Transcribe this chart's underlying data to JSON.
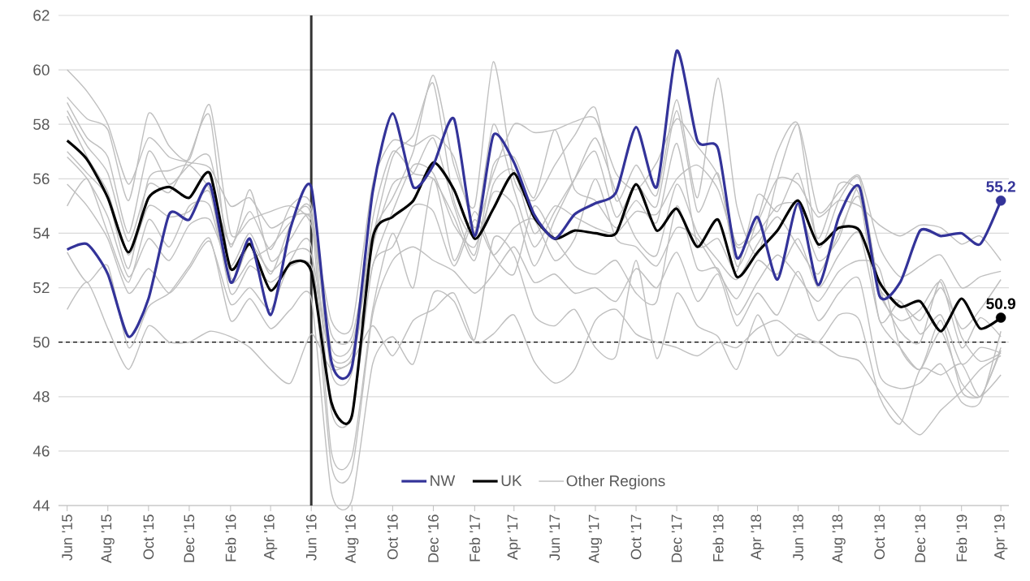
{
  "chart_data": {
    "type": "line",
    "grid": "y",
    "legend": "bottom",
    "x": [
      "2015-06",
      "2015-07",
      "2015-08",
      "2015-09",
      "2015-10",
      "2015-11",
      "2015-12",
      "2016-01",
      "2016-02",
      "2016-03",
      "2016-04",
      "2016-05",
      "2016-06",
      "2016-07",
      "2016-08",
      "2016-09",
      "2016-10",
      "2016-11",
      "2016-12",
      "2017-01",
      "2017-02",
      "2017-03",
      "2017-04",
      "2017-05",
      "2017-06",
      "2017-07",
      "2017-08",
      "2017-09",
      "2017-10",
      "2017-11",
      "2017-12",
      "2018-01",
      "2018-02",
      "2018-03",
      "2018-04",
      "2018-05",
      "2018-06",
      "2018-07",
      "2018-08",
      "2018-09",
      "2018-10",
      "2018-11",
      "2018-12",
      "2019-01",
      "2019-02",
      "2019-03",
      "2019-04"
    ],
    "xlim": [
      "2015-05-19",
      "2019-04-13"
    ],
    "xticks": [
      {
        "value": "2015-06",
        "label": "Jun '15"
      },
      {
        "value": "2015-08",
        "label": "Aug '15"
      },
      {
        "value": "2015-10",
        "label": "Oct '15"
      },
      {
        "value": "2015-12",
        "label": "Dec '15"
      },
      {
        "value": "2016-02",
        "label": "Feb '16"
      },
      {
        "value": "2016-04",
        "label": "Apr '16"
      },
      {
        "value": "2016-06",
        "label": "Jun '16"
      },
      {
        "value": "2016-08",
        "label": "Aug '16"
      },
      {
        "value": "2016-10",
        "label": "Oct '16"
      },
      {
        "value": "2016-12",
        "label": "Dec '16"
      },
      {
        "value": "2017-02",
        "label": "Feb '17"
      },
      {
        "value": "2017-04",
        "label": "Apr '17"
      },
      {
        "value": "2017-06",
        "label": "Jun '17"
      },
      {
        "value": "2017-08",
        "label": "Aug '17"
      },
      {
        "value": "2017-10",
        "label": "Oct '17"
      },
      {
        "value": "2017-12",
        "label": "Dec '17"
      },
      {
        "value": "2018-02",
        "label": "Feb '18"
      },
      {
        "value": "2018-04",
        "label": "Apr '18"
      },
      {
        "value": "2018-06",
        "label": "Jun '18"
      },
      {
        "value": "2018-08",
        "label": "Aug '18"
      },
      {
        "value": "2018-10",
        "label": "Oct '18"
      },
      {
        "value": "2018-12",
        "label": "Dec '18"
      },
      {
        "value": "2019-02",
        "label": "Feb '19"
      },
      {
        "value": "2019-04",
        "label": "Apr '19"
      }
    ],
    "ylim": [
      44,
      62
    ],
    "yticks": [
      44,
      46,
      48,
      50,
      52,
      54,
      56,
      58,
      60,
      62
    ],
    "ref_lines": [
      {
        "axis": "x",
        "value": "2016-06",
        "color": "#333333",
        "line_style": "solid"
      },
      {
        "axis": "y",
        "value": 50,
        "color": "#000000",
        "line_style": "dashed"
      }
    ],
    "series": [
      {
        "name": "NW",
        "color": "#333399",
        "values": [
          53.4,
          53.6,
          52.5,
          50.2,
          51.6,
          54.7,
          54.5,
          55.8,
          52.2,
          53.8,
          51.0,
          54.2,
          55.7,
          49.3,
          49.1,
          55.5,
          58.4,
          55.7,
          56.5,
          58.2,
          53.9,
          57.6,
          56.6,
          54.7,
          53.8,
          54.7,
          55.1,
          55.5,
          57.9,
          55.7,
          60.7,
          57.4,
          57.1,
          53.1,
          54.6,
          52.3,
          55.1,
          52.1,
          54.6,
          55.7,
          51.7,
          52.2,
          54.1,
          53.9,
          54.0,
          53.6,
          55.2
        ],
        "value_labels": [
          null,
          null,
          null,
          null,
          null,
          null,
          null,
          null,
          null,
          null,
          null,
          null,
          null,
          null,
          null,
          null,
          null,
          null,
          null,
          null,
          null,
          null,
          null,
          null,
          null,
          null,
          null,
          null,
          null,
          null,
          null,
          null,
          null,
          null,
          null,
          null,
          null,
          null,
          null,
          null,
          null,
          null,
          null,
          null,
          null,
          null,
          "55.2"
        ]
      },
      {
        "name": "UK",
        "color": "#000000",
        "values": [
          57.4,
          56.7,
          55.3,
          53.3,
          55.3,
          55.7,
          55.3,
          56.2,
          52.7,
          53.6,
          51.9,
          52.9,
          52.6,
          47.8,
          47.3,
          53.8,
          54.6,
          55.2,
          56.6,
          55.6,
          53.8,
          54.9,
          56.2,
          54.6,
          53.8,
          54.1,
          54.0,
          54.0,
          55.8,
          54.1,
          54.9,
          53.5,
          54.5,
          52.4,
          53.3,
          54.1,
          55.2,
          53.6,
          54.2,
          54.1,
          52.2,
          51.3,
          51.5,
          50.4,
          51.6,
          50.5,
          50.9
        ],
        "value_labels": [
          null,
          null,
          null,
          null,
          null,
          null,
          null,
          null,
          null,
          null,
          null,
          null,
          null,
          null,
          null,
          null,
          null,
          null,
          null,
          null,
          null,
          null,
          null,
          null,
          null,
          null,
          null,
          null,
          null,
          null,
          null,
          null,
          null,
          null,
          null,
          null,
          null,
          null,
          null,
          null,
          null,
          null,
          null,
          null,
          null,
          null,
          "50.9"
        ]
      },
      {
        "name": "Other Regions",
        "color": "#bfbfbf",
        "values": [
          60.0,
          59.2,
          58.0,
          55.8,
          57.5,
          56.8,
          56.6,
          56.4,
          55.0,
          55.3,
          54.2,
          54.6,
          54.5,
          50.8,
          50.6,
          55.8,
          57.4,
          57.2,
          57.6,
          56.8,
          54.2,
          56.2,
          58.0,
          57.7,
          57.8,
          58.1,
          58.2,
          56.2,
          55.6,
          56.6,
          58.2,
          57.2,
          56.1,
          53.6,
          54.4,
          56.0,
          55.8,
          54.6,
          55.2,
          55.0,
          54.3,
          53.9,
          54.3,
          54.2,
          53.6,
          53.9,
          53.0
        ]
      },
      {
        "color": "#bfbfbf",
        "values": [
          59.0,
          58.2,
          57.8,
          55.2,
          58.4,
          57.2,
          56.7,
          58.7,
          54.0,
          54.5,
          54.8,
          55.0,
          54.3,
          50.3,
          50.2,
          54.0,
          55.3,
          57.0,
          59.8,
          56.5,
          55.0,
          60.3,
          56.0,
          55.2,
          56.5,
          57.6,
          58.6,
          55.2,
          56.5,
          55.4,
          58.9,
          55.3,
          59.7,
          55.0,
          53.2,
          56.0,
          58.0,
          54.8,
          55.5,
          56.1,
          53.5,
          52.4,
          52.8,
          53.2,
          52.0,
          52.4,
          52.6
        ]
      },
      {
        "color": "#bfbfbf",
        "values": [
          58.8,
          57.5,
          56.8,
          54.0,
          57.0,
          55.8,
          56.5,
          56.8,
          53.5,
          55.6,
          53.0,
          53.8,
          54.6,
          49.8,
          49.9,
          53.8,
          56.8,
          57.6,
          59.5,
          55.2,
          54.0,
          58.0,
          55.6,
          53.5,
          54.8,
          56.0,
          57.0,
          54.6,
          55.8,
          55.0,
          58.5,
          54.8,
          56.2,
          52.8,
          54.5,
          57.0,
          58.0,
          53.5,
          55.2,
          56.0,
          52.0,
          51.5,
          50.8,
          52.0,
          50.5,
          51.2,
          52.3
        ]
      },
      {
        "color": "#bfbfbf",
        "values": [
          58.5,
          57.2,
          56.2,
          53.7,
          55.8,
          55.5,
          56.8,
          58.3,
          52.4,
          53.6,
          52.6,
          53.3,
          53.2,
          49.5,
          49.6,
          53.5,
          55.8,
          56.2,
          57.5,
          55.0,
          53.2,
          56.5,
          56.8,
          55.3,
          57.8,
          55.6,
          55.2,
          54.2,
          55.2,
          54.4,
          57.3,
          53.6,
          53.8,
          52.6,
          55.4,
          54.8,
          56.2,
          53.8,
          55.8,
          55.4,
          51.8,
          50.8,
          51.2,
          52.2,
          49.8,
          50.9,
          50.2
        ]
      },
      {
        "color": "#bfbfbf",
        "values": [
          58.3,
          56.8,
          55.5,
          53.2,
          55.0,
          54.6,
          54.8,
          55.5,
          51.8,
          52.8,
          52.2,
          52.8,
          52.8,
          49.3,
          49.4,
          52.8,
          54.8,
          56.5,
          56.2,
          54.3,
          53.5,
          55.5,
          55.0,
          52.8,
          54.5,
          56.0,
          57.5,
          55.5,
          53.8,
          53.2,
          55.8,
          54.0,
          53.0,
          52.3,
          53.6,
          54.6,
          53.5,
          52.5,
          54.0,
          55.3,
          50.8,
          51.5,
          50.3,
          51.0,
          49.2,
          49.8,
          49.6
        ]
      },
      {
        "color": "#bfbfbf",
        "values": [
          57.0,
          56.2,
          55.3,
          52.7,
          56.0,
          56.3,
          56.5,
          55.6,
          53.6,
          54.8,
          53.4,
          55.0,
          55.0,
          48.9,
          48.9,
          54.5,
          57.0,
          56.2,
          56.0,
          54.6,
          53.0,
          55.8,
          56.3,
          54.0,
          55.0,
          54.6,
          54.2,
          54.0,
          54.8,
          54.7,
          56.0,
          56.5,
          55.6,
          53.5,
          54.0,
          55.0,
          55.0,
          53.0,
          53.8,
          55.7,
          52.0,
          50.4,
          50.0,
          52.3,
          50.2,
          49.3,
          49.6
        ]
      },
      {
        "color": "#bfbfbf",
        "values": [
          56.8,
          56.0,
          54.6,
          52.4,
          53.8,
          53.0,
          54.3,
          54.5,
          52.8,
          54.0,
          52.5,
          54.3,
          54.8,
          47.5,
          47.3,
          52.8,
          53.5,
          55.0,
          54.8,
          52.8,
          54.5,
          53.2,
          54.2,
          54.5,
          53.0,
          53.8,
          56.0,
          53.8,
          53.5,
          52.8,
          54.2,
          53.8,
          52.6,
          51.6,
          53.0,
          52.5,
          53.8,
          52.0,
          53.2,
          54.0,
          50.8,
          49.8,
          49.0,
          50.8,
          48.2,
          48.0,
          48.8
        ]
      },
      {
        "color": "#bfbfbf",
        "values": [
          55.0,
          56.0,
          54.0,
          52.2,
          54.5,
          53.5,
          55.0,
          55.0,
          52.2,
          53.0,
          53.5,
          54.4,
          54.6,
          46.0,
          45.8,
          51.2,
          54.0,
          52.0,
          56.0,
          53.0,
          54.8,
          53.2,
          52.5,
          55.0,
          53.8,
          52.8,
          52.5,
          53.0,
          51.8,
          51.5,
          55.0,
          52.7,
          52.7,
          51.0,
          52.2,
          53.2,
          52.4,
          51.5,
          52.6,
          53.0,
          52.7,
          49.8,
          49.0,
          50.4,
          48.5,
          48.0,
          49.7
        ]
      },
      {
        "color": "#bfbfbf",
        "values": [
          55.8,
          55.0,
          53.8,
          51.8,
          52.7,
          51.8,
          52.7,
          53.7,
          51.4,
          52.0,
          51.2,
          53.0,
          53.5,
          45.5,
          45.3,
          51.0,
          53.0,
          53.5,
          53.0,
          52.6,
          51.8,
          52.5,
          53.5,
          52.2,
          52.5,
          51.8,
          52.0,
          51.5,
          52.7,
          52.0,
          53.3,
          51.5,
          52.5,
          50.6,
          51.8,
          51.0,
          52.6,
          50.8,
          51.8,
          52.3,
          48.8,
          48.3,
          48.5,
          49.2,
          47.8,
          47.8,
          50.4
        ]
      },
      {
        "color": "#bfbfbf",
        "values": [
          53.3,
          52.2,
          52.8,
          49.8,
          51.3,
          51.8,
          52.8,
          53.8,
          50.8,
          51.6,
          50.5,
          51.2,
          51.6,
          44.5,
          44.2,
          49.2,
          50.2,
          49.2,
          51.8,
          51.5,
          50.1,
          53.8,
          53.2,
          51.0,
          50.6,
          51.2,
          49.8,
          49.5,
          53.0,
          49.4,
          51.8,
          50.6,
          50.2,
          49.0,
          51.0,
          49.5,
          50.3,
          50.0,
          51.0,
          50.8,
          48.0,
          47.0,
          49.0,
          48.8,
          49.2,
          48.0,
          49.8
        ]
      },
      {
        "color": "#bfbfbf",
        "values": [
          51.2,
          52.2,
          50.5,
          49.0,
          50.6,
          50.0,
          50.0,
          50.4,
          50.2,
          49.8,
          49.0,
          48.5,
          50.3,
          49.0,
          49.3,
          50.6,
          49.5,
          50.8,
          51.2,
          51.8,
          50.0,
          50.3,
          51.0,
          49.3,
          48.5,
          49.0,
          50.8,
          51.2,
          50.3,
          50.0,
          49.8,
          49.5,
          50.0,
          49.8,
          50.5,
          50.8,
          50.2,
          50.0,
          49.5,
          49.3,
          48.2,
          47.2,
          46.6,
          47.5,
          48.2,
          49.0,
          49.5
        ]
      }
    ]
  }
}
